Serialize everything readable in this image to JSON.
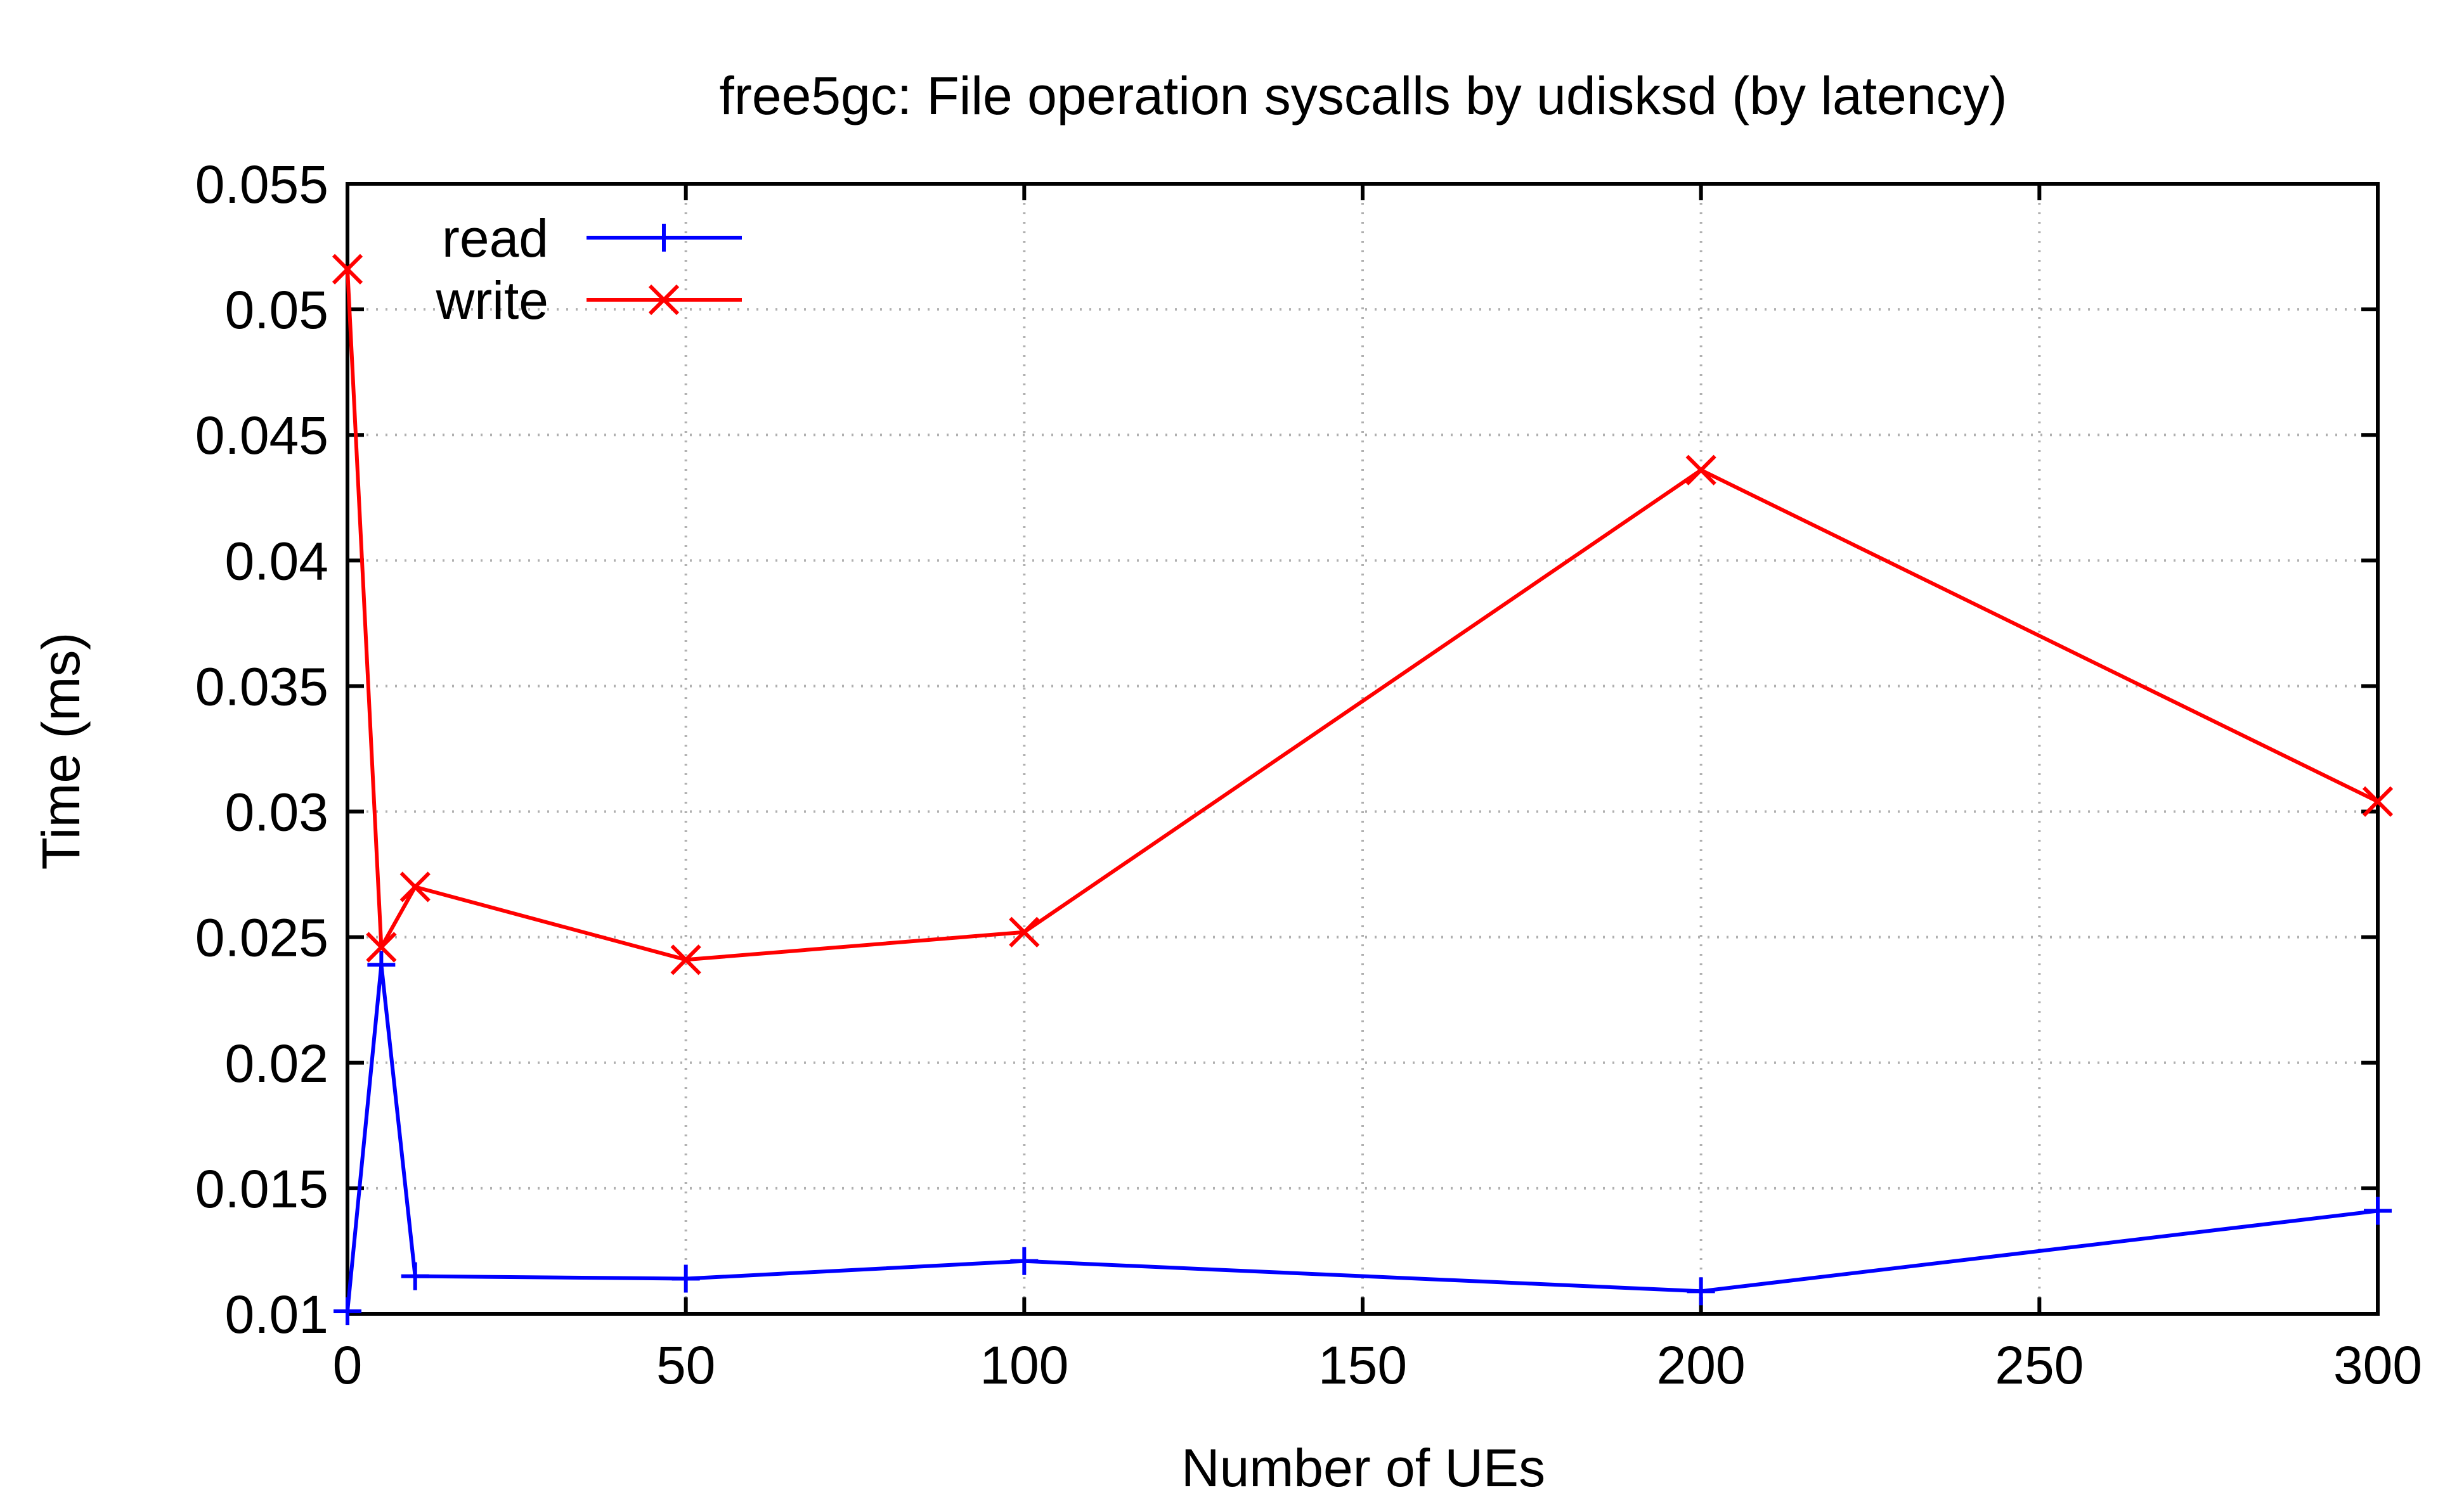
{
  "chart_data": {
    "type": "line",
    "title": "free5gc: File operation syscalls by udisksd (by latency)",
    "xlabel": "Number of UEs",
    "ylabel": "Time (ms)",
    "xlim": [
      0,
      300
    ],
    "ylim": [
      0.01,
      0.055
    ],
    "xticks": [
      "0",
      "50",
      "100",
      "150",
      "200",
      "250",
      "300"
    ],
    "yticks": [
      "0.01",
      "0.015",
      "0.02",
      "0.025",
      "0.03",
      "0.035",
      "0.04",
      "0.045",
      "0.05",
      "0.055"
    ],
    "grid": true,
    "legend_position": "top-left",
    "series": [
      {
        "name": "read",
        "color": "#0000ff",
        "marker": "plus",
        "x": [
          0,
          5,
          10,
          50,
          100,
          200,
          300
        ],
        "y": [
          0.0101,
          0.0239,
          0.0115,
          0.0114,
          0.0121,
          0.0109,
          0.0141
        ]
      },
      {
        "name": "write",
        "color": "#ff0000",
        "marker": "cross",
        "x": [
          0,
          5,
          10,
          50,
          100,
          200,
          300
        ],
        "y": [
          0.0516,
          0.0246,
          0.027,
          0.0241,
          0.0252,
          0.0436,
          0.0304
        ]
      }
    ]
  }
}
